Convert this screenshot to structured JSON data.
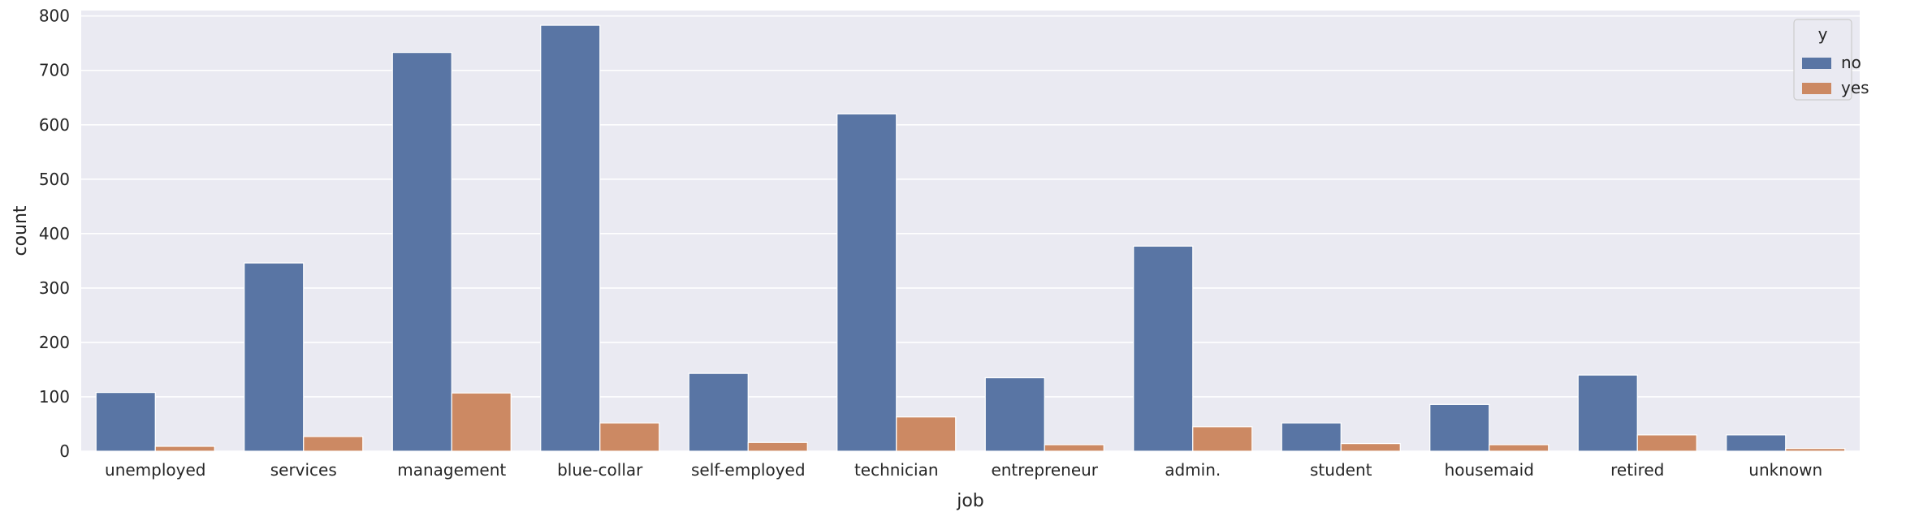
{
  "chart_data": {
    "type": "bar",
    "categories": [
      "unemployed",
      "services",
      "management",
      "blue-collar",
      "self-employed",
      "technician",
      "entrepreneur",
      "admin.",
      "student",
      "housemaid",
      "retired",
      "unknown"
    ],
    "series": [
      {
        "name": "no",
        "color": "#5975a4",
        "values": [
          108,
          346,
          733,
          783,
          143,
          620,
          135,
          377,
          52,
          86,
          140,
          30
        ]
      },
      {
        "name": "yes",
        "color": "#cc8963",
        "values": [
          9,
          27,
          107,
          52,
          16,
          63,
          12,
          45,
          14,
          12,
          30,
          5
        ]
      }
    ],
    "xlabel": "job",
    "ylabel": "count",
    "ylim": [
      0,
      810
    ],
    "yticks": [
      0,
      100,
      200,
      300,
      400,
      500,
      600,
      700,
      800
    ],
    "legend": {
      "title": "y",
      "placement": "top-right"
    },
    "grid": true,
    "background": "#eaeaf2",
    "gridcolor": "#ffffff"
  }
}
